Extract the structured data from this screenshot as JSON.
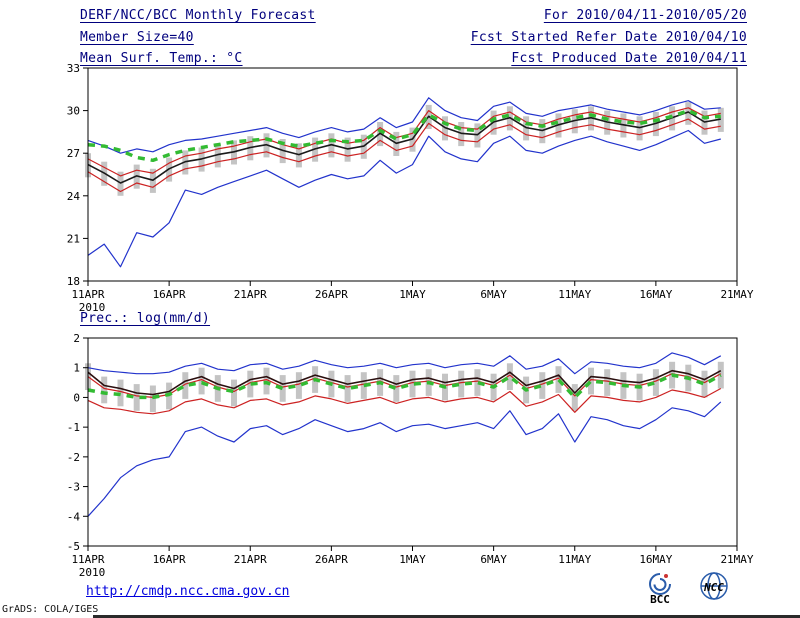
{
  "header": {
    "title": "DERF/NCC/BCC Monthly Forecast",
    "member_size": "Member Size=40",
    "forecast_range": "For 2010/04/11-2010/05/20",
    "refer_date": "Fcst Started Refer Date 2010/04/10",
    "produced_date": "Fcst Produced Date 2010/04/11"
  },
  "chart_data": [
    {
      "type": "line",
      "title": "Mean Surf. Temp.: °C",
      "xlim": [
        0,
        40
      ],
      "ylim": [
        18,
        33
      ],
      "yticks": [
        18,
        21,
        24,
        27,
        30,
        33
      ],
      "xticks": [
        {
          "x": 0,
          "label": "11APR"
        },
        {
          "x": 5,
          "label": "16APR"
        },
        {
          "x": 10,
          "label": "21APR"
        },
        {
          "x": 15,
          "label": "26APR"
        },
        {
          "x": 20,
          "label": "1MAY"
        },
        {
          "x": 25,
          "label": "6MAY"
        },
        {
          "x": 30,
          "label": "11MAY"
        },
        {
          "x": 35,
          "label": "16MAY"
        },
        {
          "x": 40,
          "label": "21MAY"
        }
      ],
      "year_label": "2010",
      "grid": false,
      "legend": "none",
      "bars": {
        "name": "ensemble-spread",
        "color": "#c4c4c4",
        "lo": [
          25.3,
          24.7,
          24.0,
          24.5,
          24.2,
          25.0,
          25.5,
          25.7,
          26.0,
          26.2,
          26.5,
          26.7,
          26.3,
          26.0,
          26.4,
          26.7,
          26.4,
          26.6,
          27.5,
          26.8,
          27.1,
          28.7,
          27.9,
          27.5,
          27.4,
          28.3,
          28.6,
          27.9,
          27.7,
          28.1,
          28.4,
          28.6,
          28.3,
          28.1,
          27.9,
          28.2,
          28.6,
          29.0,
          28.3,
          28.5
        ],
        "hi": [
          27.0,
          26.4,
          25.7,
          26.2,
          25.9,
          26.7,
          27.2,
          27.4,
          27.7,
          27.9,
          28.2,
          28.4,
          28.0,
          27.7,
          28.1,
          28.4,
          28.1,
          28.3,
          29.2,
          28.5,
          28.8,
          30.4,
          29.6,
          29.2,
          29.1,
          30.0,
          30.3,
          29.6,
          29.4,
          29.8,
          30.1,
          30.3,
          30.0,
          29.8,
          29.6,
          29.9,
          30.3,
          30.6,
          30.0,
          30.2
        ]
      },
      "series": [
        {
          "name": "ensemble-max",
          "color": "#2233cc",
          "width": 1.2,
          "values": [
            27.9,
            27.5,
            27.0,
            27.3,
            27.1,
            27.6,
            27.9,
            28.0,
            28.2,
            28.4,
            28.6,
            28.8,
            28.4,
            28.1,
            28.5,
            28.8,
            28.5,
            28.7,
            29.5,
            28.8,
            29.2,
            30.9,
            30.0,
            29.5,
            29.3,
            30.3,
            30.6,
            29.8,
            29.6,
            30.0,
            30.2,
            30.4,
            30.1,
            29.9,
            29.7,
            30.0,
            30.4,
            30.7,
            30.1,
            30.2
          ]
        },
        {
          "name": "ensemble-min",
          "color": "#2233cc",
          "width": 1.2,
          "values": [
            19.8,
            20.6,
            19.0,
            21.4,
            21.1,
            22.1,
            24.4,
            24.1,
            24.6,
            25.0,
            25.4,
            25.8,
            25.2,
            24.6,
            25.1,
            25.5,
            25.2,
            25.4,
            26.5,
            25.6,
            26.2,
            28.2,
            27.1,
            26.6,
            26.4,
            27.7,
            28.2,
            27.2,
            27.0,
            27.5,
            27.9,
            28.2,
            27.8,
            27.5,
            27.2,
            27.6,
            28.1,
            28.6,
            27.7,
            28.0
          ]
        },
        {
          "name": "upper-quartile",
          "color": "#cc2222",
          "width": 1.2,
          "values": [
            26.6,
            26.0,
            25.4,
            25.8,
            25.6,
            26.3,
            26.8,
            27.0,
            27.3,
            27.5,
            27.8,
            28.0,
            27.6,
            27.3,
            27.7,
            28.0,
            27.7,
            27.9,
            28.8,
            28.1,
            28.4,
            30.0,
            29.2,
            28.8,
            28.7,
            29.6,
            29.9,
            29.2,
            29.0,
            29.4,
            29.7,
            29.9,
            29.6,
            29.4,
            29.2,
            29.5,
            29.9,
            30.2,
            29.6,
            29.8
          ]
        },
        {
          "name": "lower-quartile",
          "color": "#cc2222",
          "width": 1.2,
          "values": [
            25.7,
            25.0,
            24.3,
            24.9,
            24.6,
            25.4,
            25.9,
            26.1,
            26.4,
            26.6,
            26.9,
            27.1,
            26.7,
            26.4,
            26.8,
            27.1,
            26.8,
            27.0,
            27.9,
            27.2,
            27.5,
            29.1,
            28.3,
            27.9,
            27.8,
            28.7,
            29.0,
            28.3,
            28.1,
            28.5,
            28.8,
            29.0,
            28.7,
            28.5,
            28.3,
            28.6,
            29.0,
            29.4,
            28.7,
            28.9
          ]
        },
        {
          "name": "ensemble-mean",
          "color": "#1a1a1a",
          "width": 1.6,
          "values": [
            26.2,
            25.6,
            24.9,
            25.4,
            25.1,
            25.9,
            26.4,
            26.6,
            26.9,
            27.1,
            27.4,
            27.6,
            27.2,
            26.9,
            27.3,
            27.6,
            27.3,
            27.5,
            28.4,
            27.7,
            28.0,
            29.6,
            28.8,
            28.4,
            28.3,
            29.2,
            29.5,
            28.8,
            28.6,
            29.0,
            29.3,
            29.5,
            29.2,
            29.0,
            28.8,
            29.1,
            29.5,
            29.9,
            29.2,
            29.4
          ]
        },
        {
          "name": "climatology",
          "color": "#33bb33",
          "width": 3.5,
          "dash": "7,6",
          "values": [
            27.6,
            27.5,
            27.2,
            26.7,
            26.5,
            26.9,
            27.2,
            27.4,
            27.6,
            27.8,
            27.9,
            28.0,
            27.7,
            27.5,
            27.7,
            27.9,
            27.8,
            27.9,
            28.6,
            28.0,
            28.3,
            29.7,
            29.1,
            28.7,
            28.6,
            29.4,
            29.7,
            29.1,
            28.9,
            29.2,
            29.5,
            29.7,
            29.4,
            29.2,
            29.1,
            29.3,
            29.6,
            30.0,
            29.5,
            29.6
          ]
        }
      ]
    },
    {
      "type": "line",
      "title": "Prec.: log(mm/d)",
      "xlim": [
        0,
        40
      ],
      "ylim": [
        -5,
        2
      ],
      "yticks": [
        -5,
        -4,
        -3,
        -2,
        -1,
        0,
        1,
        2
      ],
      "xticks": [
        {
          "x": 0,
          "label": "11APR"
        },
        {
          "x": 5,
          "label": "16APR"
        },
        {
          "x": 10,
          "label": "21APR"
        },
        {
          "x": 15,
          "label": "26APR"
        },
        {
          "x": 20,
          "label": "1MAY"
        },
        {
          "x": 25,
          "label": "6MAY"
        },
        {
          "x": 30,
          "label": "11MAY"
        },
        {
          "x": 35,
          "label": "16MAY"
        },
        {
          "x": 40,
          "label": "21MAY"
        }
      ],
      "year_label": "2010",
      "grid": false,
      "legend": "none",
      "bars": {
        "name": "ensemble-spread",
        "color": "#c4c4c4",
        "lo": [
          0.25,
          -0.2,
          -0.3,
          -0.45,
          -0.5,
          -0.4,
          -0.05,
          0.1,
          -0.15,
          -0.3,
          0.0,
          0.1,
          -0.15,
          -0.05,
          0.15,
          0.0,
          -0.15,
          -0.05,
          0.05,
          -0.15,
          0.0,
          0.05,
          -0.1,
          0.0,
          0.05,
          -0.1,
          0.25,
          -0.2,
          -0.05,
          0.15,
          -0.45,
          0.1,
          0.05,
          -0.05,
          -0.1,
          0.05,
          0.3,
          0.2,
          0.0,
          0.3
        ],
        "hi": [
          1.15,
          0.7,
          0.6,
          0.45,
          0.4,
          0.5,
          0.85,
          1.0,
          0.75,
          0.6,
          0.9,
          1.0,
          0.75,
          0.85,
          1.05,
          0.9,
          0.75,
          0.85,
          0.95,
          0.75,
          0.9,
          0.95,
          0.8,
          0.9,
          0.95,
          0.8,
          1.15,
          0.7,
          0.85,
          1.05,
          0.45,
          1.0,
          0.95,
          0.85,
          0.8,
          0.95,
          1.2,
          1.1,
          0.9,
          1.2
        ]
      },
      "series": [
        {
          "name": "ensemble-max",
          "color": "#2233cc",
          "width": 1.2,
          "values": [
            1.0,
            0.9,
            0.85,
            0.8,
            0.8,
            0.85,
            1.05,
            1.15,
            0.95,
            0.9,
            1.1,
            1.15,
            0.95,
            1.05,
            1.25,
            1.1,
            1.0,
            1.05,
            1.15,
            1.0,
            1.1,
            1.15,
            1.0,
            1.1,
            1.15,
            1.05,
            1.4,
            0.95,
            1.05,
            1.3,
            0.8,
            1.2,
            1.15,
            1.05,
            1.0,
            1.15,
            1.5,
            1.35,
            1.1,
            1.4
          ]
        },
        {
          "name": "ensemble-min",
          "color": "#2233cc",
          "width": 1.2,
          "values": [
            -4.0,
            -3.4,
            -2.7,
            -2.3,
            -2.1,
            -2.0,
            -1.15,
            -1.0,
            -1.3,
            -1.5,
            -1.05,
            -0.95,
            -1.25,
            -1.05,
            -0.75,
            -0.95,
            -1.15,
            -1.05,
            -0.85,
            -1.15,
            -0.95,
            -0.9,
            -1.05,
            -0.95,
            -0.85,
            -1.05,
            -0.45,
            -1.25,
            -1.05,
            -0.55,
            -1.5,
            -0.65,
            -0.75,
            -0.95,
            -1.05,
            -0.75,
            -0.35,
            -0.45,
            -0.65,
            -0.15
          ]
        },
        {
          "name": "upper-quartile",
          "color": "#cc2222",
          "width": 1.2,
          "values": [
            0.7,
            0.3,
            0.2,
            0.05,
            0.0,
            0.1,
            0.45,
            0.6,
            0.35,
            0.2,
            0.5,
            0.6,
            0.35,
            0.45,
            0.65,
            0.5,
            0.35,
            0.45,
            0.55,
            0.35,
            0.5,
            0.55,
            0.4,
            0.5,
            0.55,
            0.4,
            0.75,
            0.3,
            0.45,
            0.65,
            0.05,
            0.6,
            0.55,
            0.45,
            0.4,
            0.55,
            0.8,
            0.7,
            0.5,
            0.8
          ]
        },
        {
          "name": "lower-quartile",
          "color": "#cc2222",
          "width": 1.2,
          "values": [
            -0.1,
            -0.35,
            -0.4,
            -0.5,
            -0.55,
            -0.45,
            -0.15,
            -0.05,
            -0.25,
            -0.35,
            -0.1,
            -0.05,
            -0.25,
            -0.15,
            0.05,
            -0.05,
            -0.2,
            -0.1,
            0.0,
            -0.2,
            -0.05,
            0.0,
            -0.15,
            -0.05,
            0.0,
            -0.15,
            0.2,
            -0.3,
            -0.15,
            0.1,
            -0.5,
            0.05,
            0.0,
            -0.1,
            -0.15,
            0.0,
            0.25,
            0.15,
            0.0,
            0.3
          ]
        },
        {
          "name": "ensemble-mean",
          "color": "#2a0f0f",
          "width": 1.6,
          "values": [
            0.85,
            0.4,
            0.3,
            0.15,
            0.1,
            0.2,
            0.55,
            0.7,
            0.45,
            0.3,
            0.6,
            0.7,
            0.45,
            0.55,
            0.75,
            0.6,
            0.45,
            0.55,
            0.65,
            0.45,
            0.6,
            0.65,
            0.5,
            0.6,
            0.65,
            0.5,
            0.85,
            0.4,
            0.55,
            0.75,
            0.15,
            0.7,
            0.65,
            0.55,
            0.5,
            0.65,
            0.9,
            0.8,
            0.6,
            0.9
          ]
        },
        {
          "name": "climatology",
          "color": "#33bb33",
          "width": 3.5,
          "dash": "7,6",
          "values": [
            0.25,
            0.15,
            0.1,
            0.0,
            0.0,
            0.1,
            0.4,
            0.5,
            0.3,
            0.2,
            0.45,
            0.5,
            0.3,
            0.4,
            0.6,
            0.45,
            0.3,
            0.4,
            0.5,
            0.3,
            0.45,
            0.5,
            0.35,
            0.45,
            0.5,
            0.35,
            0.7,
            0.25,
            0.4,
            0.6,
            0.0,
            0.55,
            0.5,
            0.4,
            0.35,
            0.5,
            0.75,
            0.65,
            0.45,
            0.75
          ]
        }
      ]
    }
  ],
  "footer": {
    "url": "http://cmdp.ncc.cma.gov.cn",
    "credit": "GrADS: COLA/IGES",
    "logo_bcc_label": "BCC",
    "logo_ncc_label": "NCC"
  }
}
